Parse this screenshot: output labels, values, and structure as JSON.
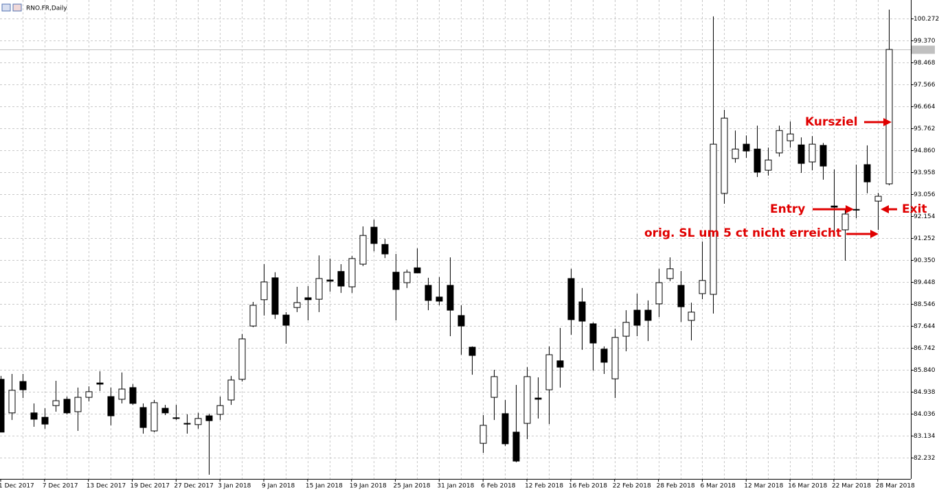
{
  "chart_data": {
    "type": "candlestick",
    "title": "RNO.FR,Daily",
    "categories": [
      "1 Dec 2017",
      null,
      null,
      null,
      "7 Dec 2017",
      null,
      null,
      null,
      "13 Dec 2017",
      null,
      null,
      null,
      "19 Dec 2017",
      null,
      null,
      null,
      "27 Dec 2017",
      null,
      null,
      null,
      "3 Jan 2018",
      null,
      null,
      null,
      "9 Jan 2018",
      null,
      null,
      null,
      "15 Jan 2018",
      null,
      null,
      null,
      "19 Jan 2018",
      null,
      null,
      null,
      "25 Jan 2018",
      null,
      null,
      null,
      "31 Jan 2018",
      null,
      null,
      null,
      "6 Feb 2018",
      null,
      null,
      null,
      "12 Feb 2018",
      null,
      null,
      null,
      "16 Feb 2018",
      null,
      null,
      null,
      "22 Feb 2018",
      null,
      null,
      null,
      "28 Feb 2018",
      null,
      null,
      null,
      "6 Mar 2018",
      null,
      null,
      null,
      "12 Mar 2018",
      null,
      null,
      null,
      "16 Mar 2018",
      null,
      null,
      null,
      "22 Mar 2018",
      null,
      null,
      null,
      "28 Mar 2018",
      null
    ],
    "open": [
      85.45,
      84.07,
      85.36,
      84.07,
      83.89,
      84.37,
      84.63,
      84.12,
      84.71,
      85.3,
      84.74,
      84.63,
      85.11,
      84.29,
      83.33,
      84.26,
      83.87,
      83.64,
      83.59,
      83.95,
      84.01,
      84.6,
      85.45,
      87.64,
      88.72,
      89.62,
      88.09,
      88.4,
      88.8,
      88.74,
      89.53,
      89.88,
      89.25,
      90.18,
      91.7,
      90.99,
      89.85,
      89.42,
      90.03,
      89.31,
      88.83,
      89.31,
      88.07,
      86.77,
      82.82,
      84.71,
      84.04,
      83.28,
      83.64,
      84.68,
      85.02,
      86.21,
      89.59,
      88.63,
      87.73,
      86.69,
      85.47,
      87.22,
      88.29,
      88.29,
      88.55,
      89.59,
      89.31,
      87.87,
      88.97,
      88.94,
      93.09,
      94.52,
      95.11,
      94.91,
      94.04,
      94.75,
      95.25,
      95.08,
      94.38,
      95.06,
      92.57,
      91.59,
      92.43,
      94.27,
      92.77,
      93.48
    ],
    "high": [
      85.59,
      85.67,
      85.67,
      84.46,
      84.26,
      85.39,
      84.74,
      85.11,
      85.16,
      85.78,
      85.11,
      85.73,
      85.25,
      84.46,
      84.6,
      84.4,
      84.4,
      84.01,
      84.07,
      84.04,
      84.74,
      85.59,
      87.31,
      88.63,
      90.18,
      89.85,
      88.21,
      89.25,
      89.28,
      90.54,
      90.41,
      90.18,
      90.52,
      91.73,
      92.01,
      91.22,
      90.6,
      89.96,
      90.83,
      89.62,
      89.65,
      90.46,
      88.49,
      86.8,
      83.98,
      85.84,
      84.6,
      85.22,
      85.95,
      85.53,
      86.8,
      87.56,
      89.99,
      89.2,
      87.79,
      86.8,
      87.53,
      88.29,
      88.97,
      88.69,
      89.99,
      90.46,
      89.9,
      88.6,
      91.11,
      100.36,
      96.52,
      95.67,
      95.47,
      95.87,
      94.97,
      95.87,
      96.04,
      95.39,
      95.44,
      95.16,
      94.07,
      92.4,
      94.27,
      95.06,
      93.11,
      100.64
    ],
    "low": [
      83.28,
      83.78,
      84.68,
      83.5,
      83.42,
      84.12,
      84.01,
      83.33,
      84.54,
      84.97,
      83.56,
      84.46,
      84.4,
      83.22,
      83.28,
      83.98,
      83.78,
      83.22,
      83.42,
      81.53,
      83.78,
      84.4,
      85.36,
      87.59,
      88.07,
      87.93,
      86.91,
      88.21,
      87.87,
      88.21,
      89.05,
      89.0,
      89.0,
      90.1,
      90.71,
      90.43,
      87.87,
      89.2,
      89.82,
      88.29,
      88.49,
      87.22,
      86.46,
      85.64,
      82.43,
      83.78,
      82.71,
      82.04,
      82.99,
      83.84,
      83.61,
      85.11,
      87.28,
      86.66,
      85.81,
      85.67,
      84.68,
      86.6,
      87.22,
      87.02,
      88.01,
      89.48,
      87.81,
      87.05,
      88.74,
      88.15,
      92.66,
      94.35,
      94.55,
      93.76,
      93.82,
      94.6,
      94.97,
      93.93,
      94.04,
      93.65,
      91.45,
      90.32,
      92.07,
      93.09,
      91.59,
      93.42
    ],
    "close": [
      83.28,
      85.0,
      85.02,
      83.81,
      83.61,
      84.57,
      84.07,
      84.71,
      84.94,
      85.25,
      83.95,
      85.05,
      84.46,
      83.47,
      84.49,
      84.07,
      83.84,
      83.61,
      83.84,
      83.75,
      84.37,
      85.42,
      87.11,
      88.49,
      89.45,
      88.12,
      87.67,
      88.6,
      88.72,
      89.59,
      89.48,
      89.28,
      90.41,
      91.36,
      91.03,
      90.6,
      89.14,
      89.85,
      89.82,
      88.69,
      88.66,
      88.29,
      87.64,
      86.43,
      83.56,
      85.56,
      82.8,
      82.09,
      85.56,
      84.63,
      86.46,
      85.95,
      87.9,
      87.84,
      86.94,
      86.15,
      87.17,
      87.79,
      87.67,
      87.87,
      89.42,
      89.99,
      88.43,
      88.21,
      89.51,
      95.11,
      96.18,
      94.91,
      94.83,
      93.96,
      94.46,
      95.67,
      95.53,
      94.32,
      95.11,
      94.21,
      92.52,
      92.24,
      92.4,
      93.56,
      92.97,
      99.0
    ],
    "up_color": "#ffffff",
    "down_color": "#000000",
    "ylim": [
      81.358,
      101.033
    ],
    "yticks": [
      82.232,
      83.134,
      84.036,
      84.938,
      {
        "value": 85.84,
        "label": "85.840"
      },
      86.742,
      87.644,
      88.546,
      89.448,
      {
        "value": 90.35,
        "label": "90.350"
      },
      91.252,
      92.154,
      93.056,
      93.958,
      {
        "value": 94.86,
        "label": "94.860"
      },
      95.762,
      96.664,
      97.566,
      98.468,
      {
        "value": 99.37,
        "label": "99.370"
      },
      100.272
    ],
    "grid": true,
    "current_price": 99.0,
    "annotations": [
      "Kursziel",
      "Entry",
      "Exit",
      "orig. SL um 5 ct nicht erreicht"
    ],
    "annotation_color": "#e00000"
  }
}
